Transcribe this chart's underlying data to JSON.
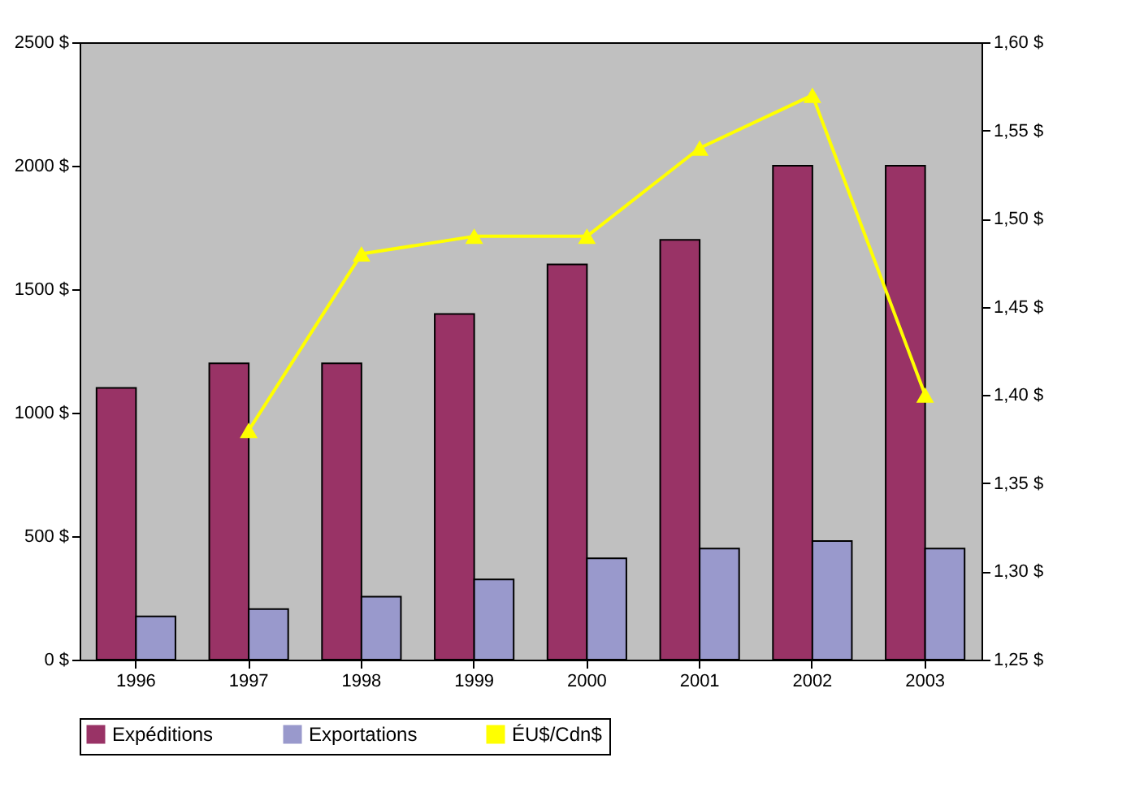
{
  "chart_data": {
    "type": "bar",
    "categories": [
      "1996",
      "1997",
      "1998",
      "1999",
      "2000",
      "2001",
      "2002",
      "2003"
    ],
    "series": [
      {
        "name": "Expéditions",
        "color": "#993366",
        "values": [
          1100,
          1200,
          1200,
          1400,
          1600,
          1700,
          2000,
          2000
        ]
      },
      {
        "name": "Exportations",
        "color": "#9999cc",
        "values": [
          175,
          205,
          255,
          325,
          410,
          450,
          480,
          450
        ]
      },
      {
        "name": "ÉU$/Cdn$",
        "color": "#ffff00",
        "type": "line",
        "axis": "y2",
        "marker": "triangle",
        "values": [
          null,
          1.38,
          1.48,
          1.49,
          1.49,
          1.54,
          1.57,
          1.4
        ]
      }
    ],
    "ylim": [
      0,
      2500
    ],
    "yticks": [
      {
        "value": 0,
        "label": "0 $"
      },
      {
        "value": 500,
        "label": "500 $"
      },
      {
        "value": 1000,
        "label": "1000 $"
      },
      {
        "value": 1500,
        "label": "1500 $"
      },
      {
        "value": 2000,
        "label": "2000 $"
      },
      {
        "value": 2500,
        "label": "2500 $"
      }
    ],
    "y2lim": [
      1.25,
      1.6
    ],
    "y2ticks": [
      {
        "value": 1.25,
        "label": "1,25 $"
      },
      {
        "value": 1.3,
        "label": "1,30 $"
      },
      {
        "value": 1.35,
        "label": "1,35 $"
      },
      {
        "value": 1.4,
        "label": "1,40 $"
      },
      {
        "value": 1.45,
        "label": "1,45 $"
      },
      {
        "value": 1.5,
        "label": "1,50 $"
      },
      {
        "value": 1.55,
        "label": "1,55 $"
      },
      {
        "value": 1.6,
        "label": "1,60 $"
      }
    ],
    "grid": false,
    "legend": "bottom"
  }
}
